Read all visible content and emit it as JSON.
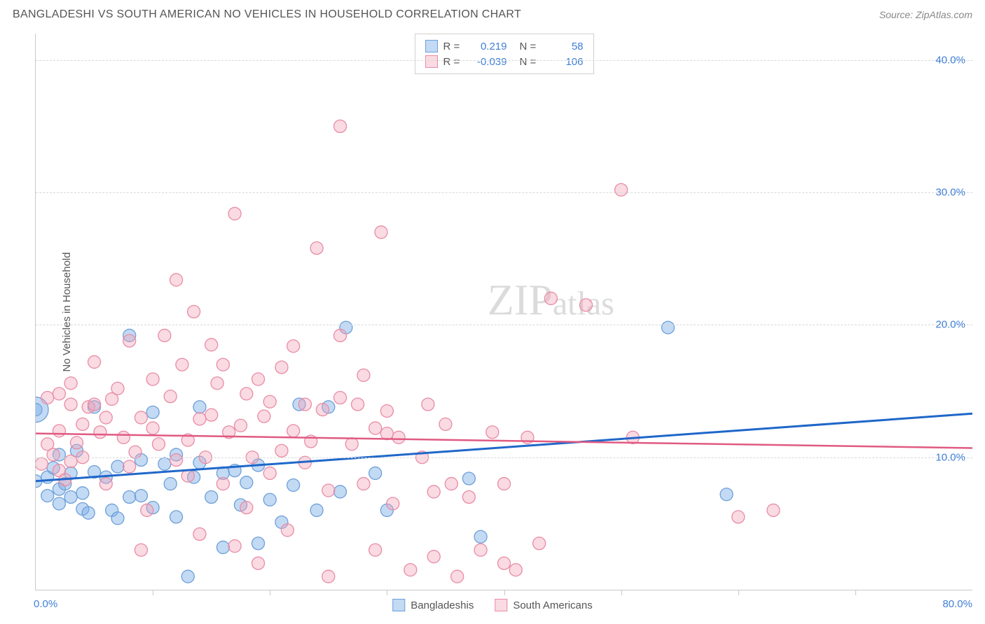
{
  "header": {
    "title": "BANGLADESHI VS SOUTH AMERICAN NO VEHICLES IN HOUSEHOLD CORRELATION CHART",
    "source_label": "Source: ZipAtlas.com"
  },
  "watermark": {
    "zip": "ZIP",
    "atlas": "atlas"
  },
  "chart": {
    "type": "scatter",
    "ylabel": "No Vehicles in Household",
    "xlim": [
      0,
      80
    ],
    "ylim": [
      0,
      42
    ],
    "x_left_label": "0.0%",
    "x_right_label": "80.0%",
    "xtick_positions": [
      10,
      20,
      30,
      40,
      50,
      60,
      70
    ],
    "ygrid": [
      {
        "value": 10,
        "label": "10.0%"
      },
      {
        "value": 20,
        "label": "20.0%"
      },
      {
        "value": 30,
        "label": "30.0%"
      },
      {
        "value": 40,
        "label": "40.0%"
      }
    ],
    "background_color": "#ffffff",
    "grid_color": "#d8d8d8",
    "axis_color": "#c9c9c9"
  },
  "series": [
    {
      "id": "bangladeshis",
      "label": "Bangladeshis",
      "marker_color_fill": "rgba(122,172,230,0.45)",
      "marker_color_stroke": "#6d9fd8",
      "marker_radius": 9,
      "trend_color": "#1f67c9",
      "trend_width": 3,
      "trend_y_at_x0": 8.2,
      "trend_y_at_xmax": 13.3,
      "r_value": "0.219",
      "n_value": "58",
      "points": [
        [
          0,
          8.2
        ],
        [
          0,
          13.6
        ],
        [
          1,
          8.5
        ],
        [
          1,
          7.1
        ],
        [
          1.5,
          9.2
        ],
        [
          2,
          6.5
        ],
        [
          2,
          7.6
        ],
        [
          2,
          10.2
        ],
        [
          2.5,
          8.0
        ],
        [
          3,
          8.8
        ],
        [
          3,
          7.0
        ],
        [
          3.5,
          10.5
        ],
        [
          4,
          6.1
        ],
        [
          4,
          7.3
        ],
        [
          4.5,
          5.8
        ],
        [
          5,
          8.9
        ],
        [
          5,
          13.8
        ],
        [
          6,
          8.5
        ],
        [
          6.5,
          6.0
        ],
        [
          7,
          5.4
        ],
        [
          7,
          9.3
        ],
        [
          8,
          7.0
        ],
        [
          8,
          19.2
        ],
        [
          9,
          9.8
        ],
        [
          9,
          7.1
        ],
        [
          10,
          6.2
        ],
        [
          10,
          13.4
        ],
        [
          11,
          9.5
        ],
        [
          11.5,
          8.0
        ],
        [
          12,
          10.2
        ],
        [
          12,
          5.5
        ],
        [
          13,
          1.0
        ],
        [
          13.5,
          8.5
        ],
        [
          14,
          9.6
        ],
        [
          14,
          13.8
        ],
        [
          15,
          7.0
        ],
        [
          16,
          3.2
        ],
        [
          16,
          8.8
        ],
        [
          17,
          9.0
        ],
        [
          17.5,
          6.4
        ],
        [
          18,
          8.1
        ],
        [
          19,
          3.5
        ],
        [
          19,
          9.4
        ],
        [
          20,
          6.8
        ],
        [
          21,
          5.1
        ],
        [
          22,
          7.9
        ],
        [
          22.5,
          14.0
        ],
        [
          24,
          6.0
        ],
        [
          25,
          13.8
        ],
        [
          26,
          7.4
        ],
        [
          26.5,
          19.8
        ],
        [
          29,
          8.8
        ],
        [
          30,
          6.0
        ],
        [
          37,
          8.4
        ],
        [
          38,
          4.0
        ],
        [
          54,
          19.8
        ],
        [
          59,
          7.2
        ]
      ],
      "big_points": [
        {
          "x": 0,
          "y": 13.6,
          "r": 18
        }
      ]
    },
    {
      "id": "south_americans",
      "label": "South Americans",
      "marker_color_fill": "rgba(242,163,184,0.40)",
      "marker_color_stroke": "#e88ca4",
      "marker_radius": 9,
      "trend_color": "#e05a82",
      "trend_width": 2.5,
      "trend_y_at_x0": 11.8,
      "trend_y_at_xmax": 10.7,
      "r_value": "-0.039",
      "n_value": "106",
      "points": [
        [
          0.5,
          9.5
        ],
        [
          1,
          14.5
        ],
        [
          1,
          11.0
        ],
        [
          1.5,
          10.2
        ],
        [
          2,
          14.8
        ],
        [
          2,
          9.0
        ],
        [
          2,
          12.0
        ],
        [
          2.5,
          8.3
        ],
        [
          3,
          14.0
        ],
        [
          3,
          9.7
        ],
        [
          3,
          15.6
        ],
        [
          3.5,
          11.1
        ],
        [
          4,
          12.5
        ],
        [
          4,
          10.0
        ],
        [
          4.5,
          13.8
        ],
        [
          5,
          17.2
        ],
        [
          5,
          14.0
        ],
        [
          5.5,
          11.9
        ],
        [
          6,
          8.0
        ],
        [
          6,
          13.0
        ],
        [
          6.5,
          14.4
        ],
        [
          7,
          15.2
        ],
        [
          7.5,
          11.5
        ],
        [
          8,
          9.3
        ],
        [
          8,
          18.8
        ],
        [
          8.5,
          10.4
        ],
        [
          9,
          13.0
        ],
        [
          9,
          3.0
        ],
        [
          9.5,
          6.0
        ],
        [
          10,
          12.2
        ],
        [
          10,
          15.9
        ],
        [
          10.5,
          11.0
        ],
        [
          11,
          19.2
        ],
        [
          11.5,
          14.6
        ],
        [
          12,
          9.8
        ],
        [
          12,
          23.4
        ],
        [
          12.5,
          17.0
        ],
        [
          13,
          11.3
        ],
        [
          13,
          8.6
        ],
        [
          13.5,
          21.0
        ],
        [
          14,
          12.9
        ],
        [
          14,
          4.2
        ],
        [
          14.5,
          10.0
        ],
        [
          15,
          18.5
        ],
        [
          15,
          13.2
        ],
        [
          15.5,
          15.6
        ],
        [
          16,
          8.0
        ],
        [
          16,
          17.0
        ],
        [
          16.5,
          11.9
        ],
        [
          17,
          3.3
        ],
        [
          17,
          28.4
        ],
        [
          17.5,
          12.4
        ],
        [
          18,
          14.8
        ],
        [
          18,
          6.2
        ],
        [
          18.5,
          10.0
        ],
        [
          19,
          15.9
        ],
        [
          19,
          2.0
        ],
        [
          19.5,
          13.1
        ],
        [
          20,
          8.8
        ],
        [
          20,
          14.2
        ],
        [
          21,
          16.8
        ],
        [
          21,
          10.5
        ],
        [
          21.5,
          4.5
        ],
        [
          22,
          12.0
        ],
        [
          22,
          18.4
        ],
        [
          23,
          9.6
        ],
        [
          23,
          14.0
        ],
        [
          23.5,
          11.2
        ],
        [
          24,
          25.8
        ],
        [
          24.5,
          13.6
        ],
        [
          25,
          7.5
        ],
        [
          25,
          1.0
        ],
        [
          26,
          19.2
        ],
        [
          26,
          14.5
        ],
        [
          26,
          35.0
        ],
        [
          27,
          11.0
        ],
        [
          27.5,
          14.0
        ],
        [
          28,
          8.0
        ],
        [
          28,
          16.2
        ],
        [
          29,
          12.2
        ],
        [
          29,
          3.0
        ],
        [
          29.5,
          27.0
        ],
        [
          30,
          11.8
        ],
        [
          30,
          13.5
        ],
        [
          30.5,
          6.5
        ],
        [
          31,
          11.5
        ],
        [
          32,
          1.5
        ],
        [
          33,
          10.0
        ],
        [
          33.5,
          14.0
        ],
        [
          34,
          7.4
        ],
        [
          34,
          2.5
        ],
        [
          35,
          12.5
        ],
        [
          35.5,
          8.0
        ],
        [
          36,
          1.0
        ],
        [
          37,
          7.0
        ],
        [
          38,
          3.0
        ],
        [
          39,
          11.9
        ],
        [
          40,
          2.0
        ],
        [
          40,
          8.0
        ],
        [
          41,
          1.5
        ],
        [
          42,
          11.5
        ],
        [
          43,
          3.5
        ],
        [
          44,
          22.0
        ],
        [
          47,
          21.5
        ],
        [
          50,
          30.2
        ],
        [
          51,
          11.5
        ],
        [
          60,
          5.5
        ],
        [
          63,
          6.0
        ]
      ]
    }
  ],
  "top_legend": {
    "rows": [
      {
        "series_id": "bangladeshis",
        "r_label": "R =",
        "n_label": "N ="
      },
      {
        "series_id": "south_americans",
        "r_label": "R =",
        "n_label": "N ="
      }
    ]
  },
  "text_colors": {
    "title": "#555555",
    "axis_value": "#3f7fd6",
    "label": "#555555"
  }
}
